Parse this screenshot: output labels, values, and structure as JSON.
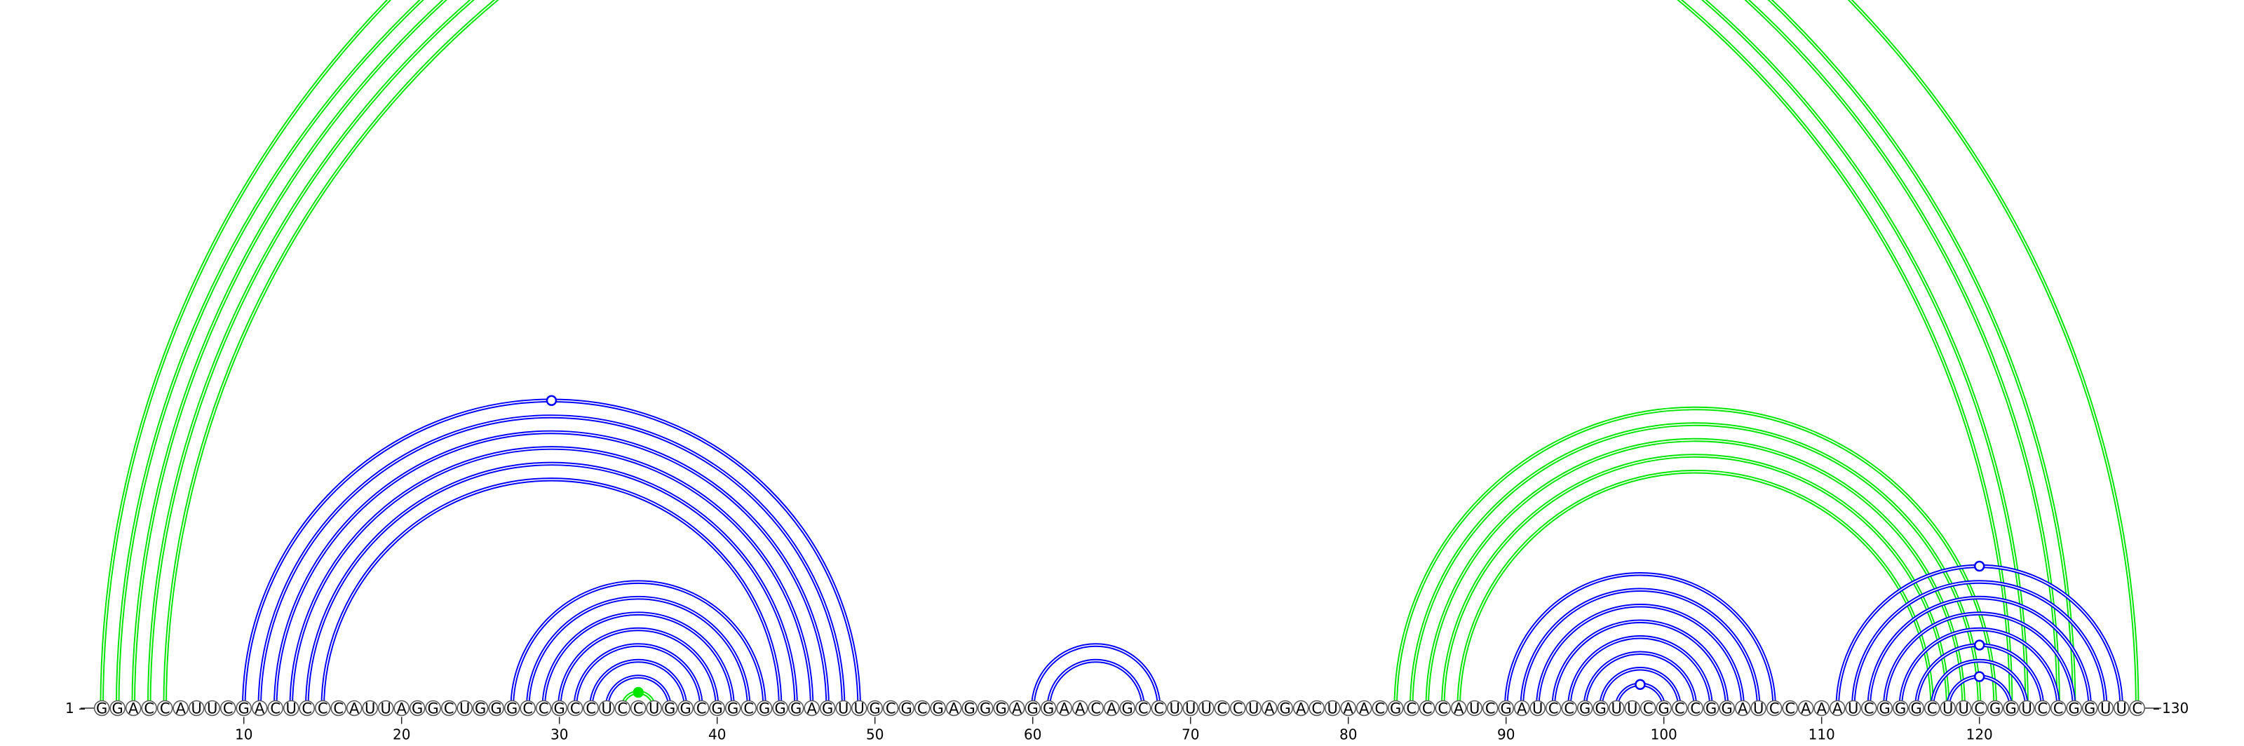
{
  "sequence": "GGACCAUUCGACUCCCAUUAGGCUGGGCCGCCUCCUGGCGGCGGGAGUUGCGCGAGGGAGGAACAGCCUUUCCUAGACUAACGCCCAUCGAUCCGGUUCGCCGGAUCCAAAUCGGGCUUCGGUCCGGUUC",
  "start_label": "1",
  "end_label": "130",
  "tick_labels": [
    "10",
    "20",
    "30",
    "40",
    "50",
    "60",
    "70",
    "80",
    "90",
    "100",
    "110",
    "120"
  ],
  "colors": {
    "blue_arcs": "#0000ff",
    "green_arcs": "#00e600",
    "nucleotide_fill": "#ffffff",
    "nucleotide_stroke": "#555555",
    "background": "#ffffff"
  },
  "base_pairs": {
    "blue": [
      {
        "i": 10,
        "j": 49,
        "marker": "open"
      },
      {
        "i": 11,
        "j": 48
      },
      {
        "i": 12,
        "j": 47
      },
      {
        "i": 13,
        "j": 46
      },
      {
        "i": 14,
        "j": 45
      },
      {
        "i": 15,
        "j": 44
      },
      {
        "i": 27,
        "j": 43
      },
      {
        "i": 28,
        "j": 42
      },
      {
        "i": 29,
        "j": 41
      },
      {
        "i": 30,
        "j": 40
      },
      {
        "i": 31,
        "j": 39
      },
      {
        "i": 32,
        "j": 38
      },
      {
        "i": 33,
        "j": 37
      },
      {
        "i": 60,
        "j": 68
      },
      {
        "i": 61,
        "j": 67
      },
      {
        "i": 90,
        "j": 107
      },
      {
        "i": 91,
        "j": 106
      },
      {
        "i": 92,
        "j": 105
      },
      {
        "i": 93,
        "j": 104
      },
      {
        "i": 94,
        "j": 103
      },
      {
        "i": 95,
        "j": 102
      },
      {
        "i": 96,
        "j": 101
      },
      {
        "i": 97,
        "j": 100,
        "marker": "open"
      },
      {
        "i": 111,
        "j": 129,
        "marker": "open"
      },
      {
        "i": 112,
        "j": 128
      },
      {
        "i": 113,
        "j": 127
      },
      {
        "i": 114,
        "j": 126
      },
      {
        "i": 115,
        "j": 125
      },
      {
        "i": 116,
        "j": 124,
        "marker": "open"
      },
      {
        "i": 117,
        "j": 123
      },
      {
        "i": 118,
        "j": 122,
        "marker": "open"
      }
    ],
    "green": [
      {
        "i": 1,
        "j": 130,
        "marker": "open"
      },
      {
        "i": 2,
        "j": 126
      },
      {
        "i": 3,
        "j": 125
      },
      {
        "i": 4,
        "j": 123
      },
      {
        "i": 5,
        "j": 122
      },
      {
        "i": 34,
        "j": 36,
        "marker": "filled"
      },
      {
        "i": 83,
        "j": 121
      },
      {
        "i": 84,
        "j": 120
      },
      {
        "i": 85,
        "j": 119
      },
      {
        "i": 86,
        "j": 118
      },
      {
        "i": 87,
        "j": 117
      }
    ]
  }
}
